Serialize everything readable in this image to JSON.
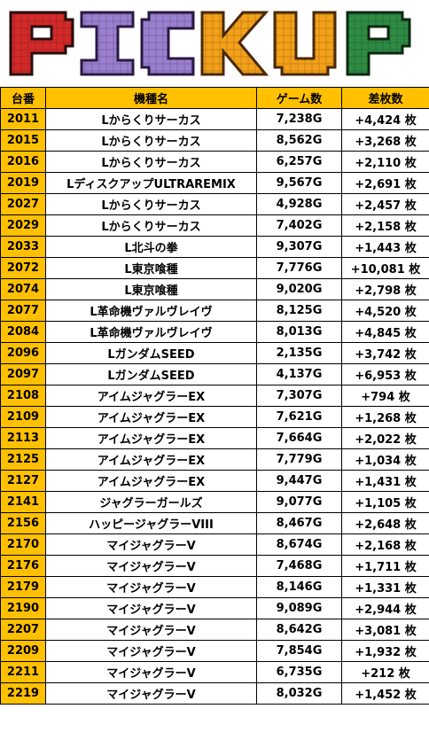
{
  "banner": {
    "title": "PICKUP"
  },
  "colors": {
    "header_bg": "#ffc000",
    "number_bg": "#ffc000",
    "diff_text": "#1a1aff",
    "letter_p": "#d42a2a",
    "letter_i": "#9b7fd0",
    "letter_c": "#9b7fd0",
    "letter_k": "#f4a11a",
    "letter_u": "#f4a11a",
    "letter_p2": "#2e8b44"
  },
  "table": {
    "headers": {
      "number": "台番",
      "model": "機種名",
      "games": "ゲーム数",
      "diff": "差枚数"
    },
    "rows": [
      {
        "number": "2011",
        "model": "Lからくりサーカス",
        "games": "7,238G",
        "diff": "+4,424 枚"
      },
      {
        "number": "2015",
        "model": "Lからくりサーカス",
        "games": "8,562G",
        "diff": "+3,268 枚"
      },
      {
        "number": "2016",
        "model": "Lからくりサーカス",
        "games": "6,257G",
        "diff": "+2,110 枚"
      },
      {
        "number": "2019",
        "model": "LディスクアップULTRAREMIX",
        "games": "9,567G",
        "diff": "+2,691 枚"
      },
      {
        "number": "2027",
        "model": "Lからくりサーカス",
        "games": "4,928G",
        "diff": "+2,457 枚"
      },
      {
        "number": "2029",
        "model": "Lからくりサーカス",
        "games": "7,402G",
        "diff": "+2,158 枚"
      },
      {
        "number": "2033",
        "model": "L北斗の拳",
        "games": "9,307G",
        "diff": "+1,443 枚"
      },
      {
        "number": "2072",
        "model": "L東京喰種",
        "games": "7,776G",
        "diff": "+10,081 枚"
      },
      {
        "number": "2074",
        "model": "L東京喰種",
        "games": "9,020G",
        "diff": "+2,798 枚"
      },
      {
        "number": "2077",
        "model": "L革命機ヴァルヴレイヴ",
        "games": "8,125G",
        "diff": "+4,520 枚"
      },
      {
        "number": "2084",
        "model": "L革命機ヴァルヴレイヴ",
        "games": "8,013G",
        "diff": "+4,845 枚"
      },
      {
        "number": "2096",
        "model": "LガンダムSEED",
        "games": "2,135G",
        "diff": "+3,742 枚"
      },
      {
        "number": "2097",
        "model": "LガンダムSEED",
        "games": "4,137G",
        "diff": "+6,953 枚"
      },
      {
        "number": "2108",
        "model": "アイムジャグラーEX",
        "games": "7,307G",
        "diff": "+794 枚"
      },
      {
        "number": "2109",
        "model": "アイムジャグラーEX",
        "games": "7,621G",
        "diff": "+1,268 枚"
      },
      {
        "number": "2113",
        "model": "アイムジャグラーEX",
        "games": "7,664G",
        "diff": "+2,022 枚"
      },
      {
        "number": "2125",
        "model": "アイムジャグラーEX",
        "games": "7,779G",
        "diff": "+1,034 枚"
      },
      {
        "number": "2127",
        "model": "アイムジャグラーEX",
        "games": "9,447G",
        "diff": "+1,431 枚"
      },
      {
        "number": "2141",
        "model": "ジャグラーガールズ",
        "games": "9,077G",
        "diff": "+1,105 枚"
      },
      {
        "number": "2156",
        "model": "ハッピージャグラーVIII",
        "games": "8,467G",
        "diff": "+2,648 枚"
      },
      {
        "number": "2170",
        "model": "マイジャグラーV",
        "games": "8,674G",
        "diff": "+2,168 枚"
      },
      {
        "number": "2176",
        "model": "マイジャグラーV",
        "games": "7,468G",
        "diff": "+1,711 枚"
      },
      {
        "number": "2179",
        "model": "マイジャグラーV",
        "games": "8,146G",
        "diff": "+1,331 枚"
      },
      {
        "number": "2190",
        "model": "マイジャグラーV",
        "games": "9,089G",
        "diff": "+2,944 枚"
      },
      {
        "number": "2207",
        "model": "マイジャグラーV",
        "games": "8,642G",
        "diff": "+3,081 枚"
      },
      {
        "number": "2209",
        "model": "マイジャグラーV",
        "games": "7,854G",
        "diff": "+1,932 枚"
      },
      {
        "number": "2211",
        "model": "マイジャグラーV",
        "games": "6,735G",
        "diff": "+212 枚"
      },
      {
        "number": "2219",
        "model": "マイジャグラーV",
        "games": "8,032G",
        "diff": "+1,452 枚"
      }
    ]
  }
}
